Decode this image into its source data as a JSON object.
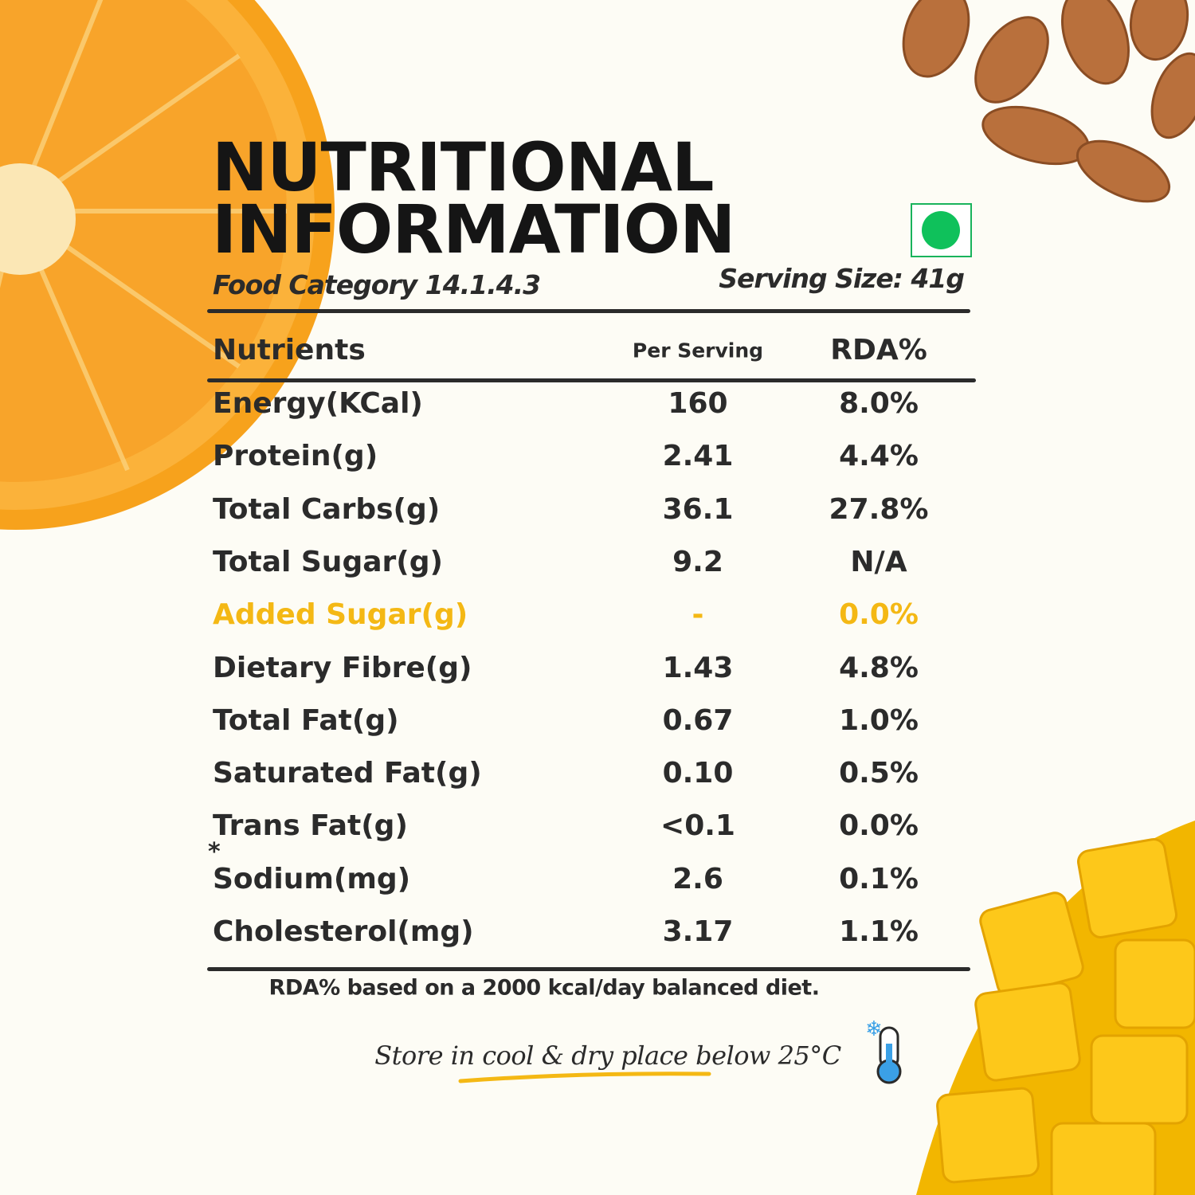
{
  "header": {
    "title": [
      "NUTRITIONAL",
      "INFORMATION"
    ],
    "food_category": "Food Category 14.1.4.3",
    "serving_size": "Serving Size: 41g"
  },
  "table": {
    "columns": [
      "Nutrients",
      "Per Serving",
      "RDA%"
    ],
    "rows": [
      [
        "Energy(KCal)",
        "160",
        "8.0%"
      ],
      [
        "Protein(g)",
        "2.41",
        "4.4%"
      ],
      [
        "Total Carbs(g)",
        "36.1",
        "27.8%"
      ],
      [
        "Total Sugar(g)",
        "9.2",
        "N/A"
      ],
      [
        "Added Sugar(g)",
        "-",
        "0.0%"
      ],
      [
        "Dietary Fibre(g)",
        "1.43",
        "4.8%"
      ],
      [
        "Total Fat(g)",
        "0.67",
        "1.0%"
      ],
      [
        "Saturated Fat(g)",
        "0.10",
        "0.5%"
      ],
      [
        "Trans Fat(g)",
        "<0.1",
        "0.0%"
      ],
      [
        "Sodium(mg)",
        "2.6",
        "0.1%"
      ],
      [
        "Cholesterol(mg)",
        "3.17",
        "1.1%"
      ]
    ]
  },
  "marker": "*",
  "footnote": "RDA% based on a 2000 kcal/day balanced diet.",
  "storage": "Store in cool & dry place below 25°C"
}
